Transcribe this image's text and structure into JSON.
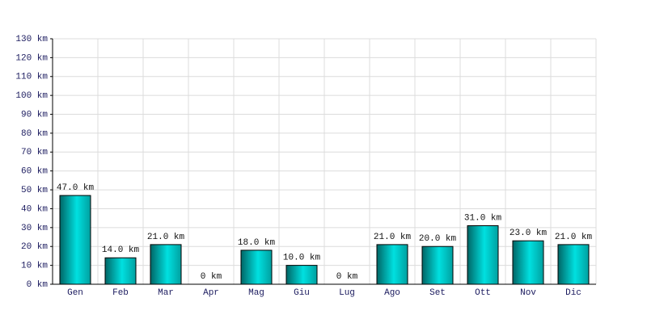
{
  "chart_data": {
    "type": "bar",
    "categories": [
      "Gen",
      "Feb",
      "Mar",
      "Apr",
      "Mag",
      "Giu",
      "Lug",
      "Ago",
      "Set",
      "Ott",
      "Nov",
      "Dic"
    ],
    "values": [
      47,
      14,
      21,
      0,
      18,
      10,
      0,
      21,
      20,
      31,
      23,
      21
    ],
    "value_labels": [
      "47.0 km",
      "14.0 km",
      "21.0 km",
      "0 km",
      "18.0 km",
      "10.0 km",
      "0 km",
      "21.0 km",
      "20.0 km",
      "31.0 km",
      "23.0 km",
      "21.0 km"
    ],
    "color": "#00e0e0",
    "ylim": [
      0,
      130
    ],
    "yticks": [
      {
        "value": 0,
        "label": "0 km"
      },
      {
        "value": 10,
        "label": "10 km"
      },
      {
        "value": 20,
        "label": "20 km"
      },
      {
        "value": 30,
        "label": "30 km"
      },
      {
        "value": 40,
        "label": "40 km"
      },
      {
        "value": 50,
        "label": "50 km"
      },
      {
        "value": 60,
        "label": "60 km"
      },
      {
        "value": 70,
        "label": "70 km"
      },
      {
        "value": 80,
        "label": "80 km"
      },
      {
        "value": 90,
        "label": "90 km"
      },
      {
        "value": 100,
        "label": "100 km"
      },
      {
        "value": 110,
        "label": "110 km"
      },
      {
        "value": 120,
        "label": "120 km"
      },
      {
        "value": 130,
        "label": "130 km"
      }
    ],
    "grid": true
  }
}
